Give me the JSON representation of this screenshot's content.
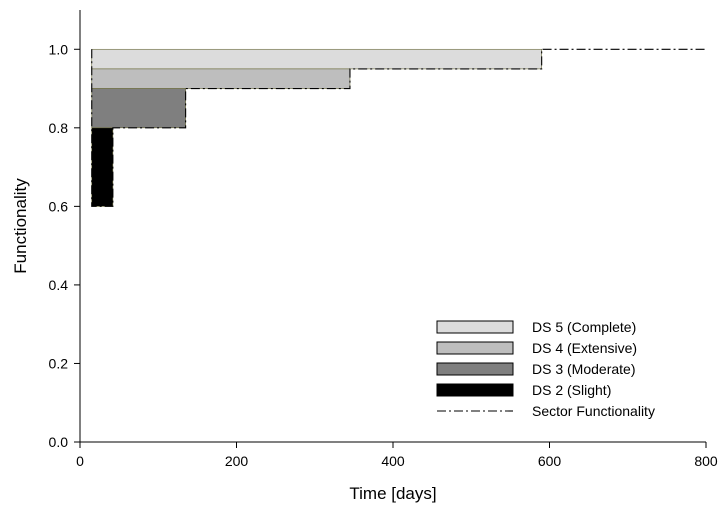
{
  "chart_data": {
    "type": "area",
    "xlabel": "Time [days]",
    "ylabel": "Functionality",
    "xlim": [
      0,
      800
    ],
    "ylim": [
      0,
      1.1
    ],
    "xticks": [
      0,
      200,
      400,
      600,
      800
    ],
    "yticks": [
      0.0,
      0.2,
      0.4,
      0.6,
      0.8,
      1.0
    ],
    "xtick_labels": [
      "0",
      "200",
      "400",
      "600",
      "800"
    ],
    "ytick_labels": [
      "0.0",
      "0.2",
      "0.4",
      "0.6",
      "0.8",
      "1.0"
    ],
    "grid": false,
    "legend_position": "bottom-right",
    "series": [
      {
        "name": "DS 5 (Complete)",
        "color": "#dcdcdc",
        "x_start": 15,
        "x_end": 590,
        "y_low": 0.95,
        "y_high": 1.0
      },
      {
        "name": "DS 4 (Extensive)",
        "color": "#bebebe",
        "x_start": 15,
        "x_end": 345,
        "y_low": 0.9,
        "y_high": 0.95
      },
      {
        "name": "DS 3 (Moderate)",
        "color": "#7f7f7f",
        "x_start": 15,
        "x_end": 135,
        "y_low": 0.8,
        "y_high": 0.9
      },
      {
        "name": "DS 2 (Slight)",
        "color": "#000000",
        "x_start": 15,
        "x_end": 42,
        "y_low": 0.6,
        "y_high": 0.8
      }
    ],
    "sector_functionality": {
      "name": "Sector Functionality",
      "x": [
        15,
        15,
        42,
        42,
        135,
        135,
        345,
        345,
        590,
        590,
        800
      ],
      "y": [
        1.0,
        0.6,
        0.6,
        0.8,
        0.8,
        0.9,
        0.9,
        0.95,
        0.95,
        1.0,
        1.0
      ]
    }
  }
}
